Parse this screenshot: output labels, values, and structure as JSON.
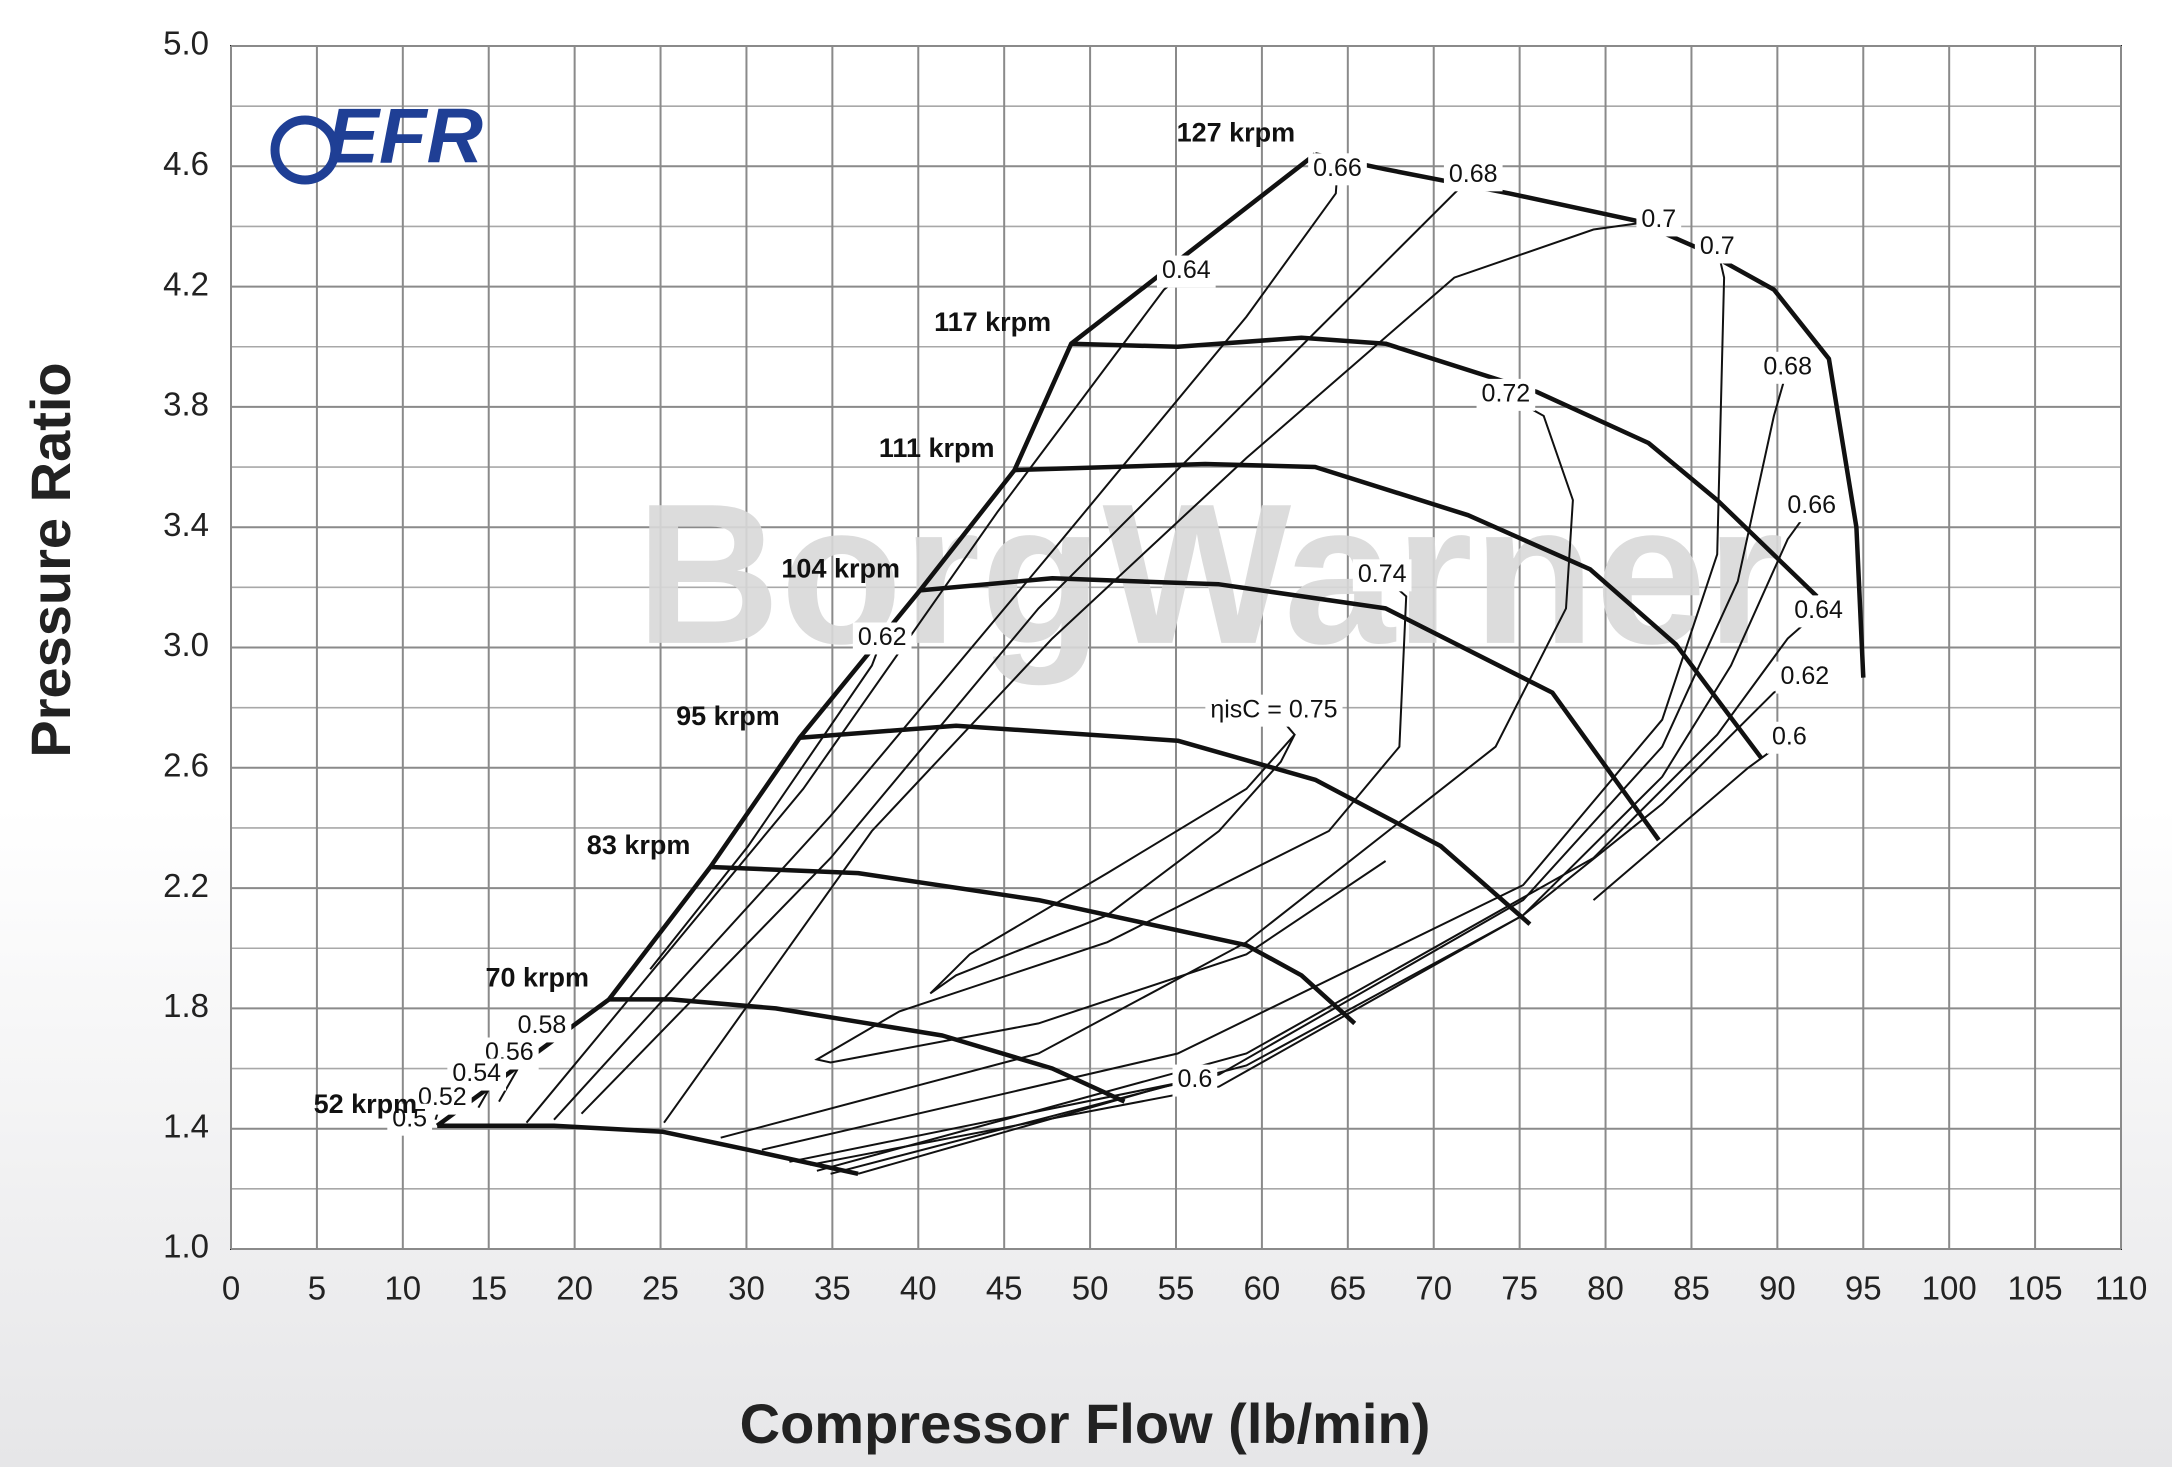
{
  "chart_data": {
    "type": "line",
    "xlabel": "Compressor Flow (lb/min)",
    "ylabel": "Pressure Ratio",
    "logo": "EFR",
    "watermark": "BorgWarner",
    "xlim": [
      0,
      110
    ],
    "ylim": [
      1,
      5
    ],
    "xticks": [
      0,
      5,
      10,
      15,
      20,
      25,
      30,
      35,
      40,
      45,
      50,
      55,
      60,
      65,
      70,
      75,
      80,
      85,
      90,
      95,
      100,
      105,
      110
    ],
    "yticks": [
      {
        "value": 1,
        "label": "1.0"
      },
      1.4,
      1.8,
      2.2,
      2.6,
      {
        "value": 3,
        "label": "3.0"
      },
      3.4,
      3.8,
      4.2,
      4.6,
      {
        "value": 5,
        "label": "5.0"
      }
    ],
    "yminorticks": [
      1.2,
      1.6,
      2,
      2.4,
      2.8,
      3.2,
      3.6,
      4,
      4.4,
      4.8
    ],
    "grid": true,
    "color": "#111111",
    "series": [
      {
        "name": "52 krpm",
        "x": [
          12.0,
          18.8,
          25.1,
          30.1,
          36.5
        ],
        "y": [
          1.41,
          1.41,
          1.39,
          1.33,
          1.25
        ]
      },
      {
        "name": "70 krpm",
        "x": [
          22.0,
          25.6,
          31.7,
          41.4,
          47.8,
          52.0
        ],
        "y": [
          1.83,
          1.83,
          1.8,
          1.71,
          1.6,
          1.49
        ]
      },
      {
        "name": "83 krpm",
        "x": [
          27.9,
          36.5,
          47.0,
          59.1,
          62.3,
          65.4
        ],
        "y": [
          2.27,
          2.25,
          2.16,
          2.01,
          1.91,
          1.75
        ]
      },
      {
        "name": "95 krpm",
        "x": [
          33.1,
          42.2,
          55.1,
          63.1,
          70.4,
          75.6
        ],
        "y": [
          2.7,
          2.74,
          2.69,
          2.56,
          2.34,
          2.08
        ]
      },
      {
        "name": "104 krpm",
        "x": [
          40.1,
          47.8,
          57.5,
          67.2,
          76.9,
          83.1
        ],
        "y": [
          3.19,
          3.23,
          3.21,
          3.13,
          2.85,
          2.36
        ]
      },
      {
        "name": "111 krpm",
        "x": [
          45.6,
          56.7,
          63.1,
          72.0,
          79.1,
          84.1,
          89.1
        ],
        "y": [
          3.59,
          3.61,
          3.6,
          3.44,
          3.26,
          3.01,
          2.63
        ]
      },
      {
        "name": "117 krpm",
        "x": [
          48.9,
          55.1,
          62.3,
          67.2,
          76.0,
          82.5,
          86.5,
          92.3
        ],
        "y": [
          4.01,
          4.0,
          4.03,
          4.01,
          3.85,
          3.68,
          3.49,
          3.17
        ]
      },
      {
        "name": "127 krpm",
        "x": [
          63.1,
          67.2,
          74.4,
          81.7,
          85.7,
          89.8,
          93.0,
          94.6,
          95.0
        ],
        "y": [
          4.64,
          4.59,
          4.51,
          4.42,
          4.32,
          4.19,
          3.96,
          3.4,
          2.9
        ]
      },
      {
        "x": [
          12.0,
          22.0,
          27.9,
          33.1,
          40.1,
          45.6,
          48.9,
          63.1
        ],
        "y": [
          1.41,
          1.83,
          2.27,
          2.7,
          3.19,
          3.59,
          4.01,
          4.64
        ]
      }
    ],
    "contours": [
      {
        "name": "ηisC = 0.75",
        "x": [
          60.7,
          61.9,
          59.1,
          51.0,
          43.0,
          40.7,
          42.2,
          51.0,
          57.5,
          61.1,
          61.9
        ],
        "y": [
          2.79,
          2.71,
          2.53,
          2.25,
          1.98,
          1.85,
          1.91,
          2.11,
          2.39,
          2.62,
          2.71
        ]
      },
      {
        "name": "0.74",
        "x": [
          67.0,
          68.4,
          68.0,
          63.9,
          51.0,
          38.9,
          34.1,
          34.9,
          47.0,
          59.1,
          67.2
        ],
        "y": [
          3.24,
          3.17,
          2.67,
          2.39,
          2.02,
          1.79,
          1.63,
          1.62,
          1.75,
          1.98,
          2.29
        ]
      },
      {
        "name": "0.72",
        "x": [
          74.2,
          76.4,
          78.1,
          77.7,
          73.6,
          59.1,
          47.0,
          28.5
        ],
        "y": [
          3.84,
          3.77,
          3.49,
          3.13,
          2.67,
          2.02,
          1.65,
          1.37
        ]
      },
      {
        "name": "0.7",
        "x": [
          83.1,
          79.3,
          71.2,
          59.1,
          47.8,
          37.3,
          25.2
        ],
        "y": [
          4.42,
          4.39,
          4.23,
          3.63,
          3.03,
          2.39,
          1.42
        ]
      },
      {
        "name": "0.7",
        "x": [
          86.5,
          86.9,
          86.5,
          83.3,
          75.2,
          55.1,
          30.9
        ],
        "y": [
          4.33,
          4.23,
          3.31,
          2.76,
          2.21,
          1.65,
          1.33
        ]
      },
      {
        "name": "0.68",
        "x": [
          72.3,
          71.2,
          59.1,
          47.0,
          34.9,
          20.4
        ],
        "y": [
          4.57,
          4.51,
          3.82,
          3.13,
          2.3,
          1.45
        ]
      },
      {
        "name": "0.68",
        "x": [
          90.6,
          89.8,
          87.7,
          83.3,
          75.2,
          57.5,
          32.5
        ],
        "y": [
          3.93,
          3.77,
          3.22,
          2.67,
          2.16,
          1.58,
          1.29
        ]
      },
      {
        "name": "0.66",
        "x": [
          64.4,
          64.3,
          59.1,
          47.8,
          34.9,
          18.8
        ],
        "y": [
          4.59,
          4.51,
          4.1,
          3.32,
          2.44,
          1.43
        ]
      },
      {
        "name": "0.66",
        "x": [
          92.0,
          90.6,
          87.3,
          83.3,
          75.2,
          57.5,
          33.7
        ],
        "y": [
          3.47,
          3.36,
          2.94,
          2.57,
          2.11,
          1.54,
          1.28
        ]
      },
      {
        "name": "0.64",
        "x": [
          55.6,
          54.3,
          44.6,
          33.3,
          17.2
        ],
        "y": [
          4.25,
          4.19,
          3.45,
          2.53,
          1.42
        ]
      },
      {
        "name": "0.64",
        "x": [
          92.4,
          90.6,
          86.5,
          79.3,
          59.1,
          34.1
        ],
        "y": [
          3.12,
          3.03,
          2.71,
          2.3,
          1.65,
          1.26
        ]
      },
      {
        "name": "0.62",
        "x": [
          37.9,
          37.3,
          30.1,
          24.4
        ],
        "y": [
          3.03,
          2.94,
          2.34,
          1.93
        ]
      },
      {
        "name": "0.62",
        "x": [
          91.6,
          89.8,
          83.3,
          75.2,
          59.1,
          34.9
        ],
        "y": [
          2.9,
          2.85,
          2.48,
          2.11,
          1.61,
          1.25
        ]
      },
      {
        "name": "0.6",
        "x": [
          90.7,
          88.3,
          79.3
        ],
        "y": [
          2.7,
          2.6,
          2.16
        ]
      },
      {
        "name": "0.6",
        "x": [
          56.1,
          54.3,
          36.5
        ],
        "y": [
          1.56,
          1.54,
          1.25
        ]
      },
      {
        "name": "0.58",
        "x": [
          18.1,
          15.6
        ],
        "y": [
          1.74,
          1.49
        ]
      },
      {
        "name": "0.56",
        "x": [
          16.2,
          14.4
        ],
        "y": [
          1.65,
          1.47
        ]
      },
      {
        "name": "0.54",
        "x": [
          14.3,
          13.1
        ],
        "y": [
          1.58,
          1.45
        ]
      },
      {
        "name": "0.52",
        "x": [
          12.3,
          11.9
        ],
        "y": [
          1.5,
          1.43
        ]
      },
      {
        "name": "0.5",
        "x": [
          10.4
        ],
        "y": [
          1.43
        ]
      }
    ]
  }
}
